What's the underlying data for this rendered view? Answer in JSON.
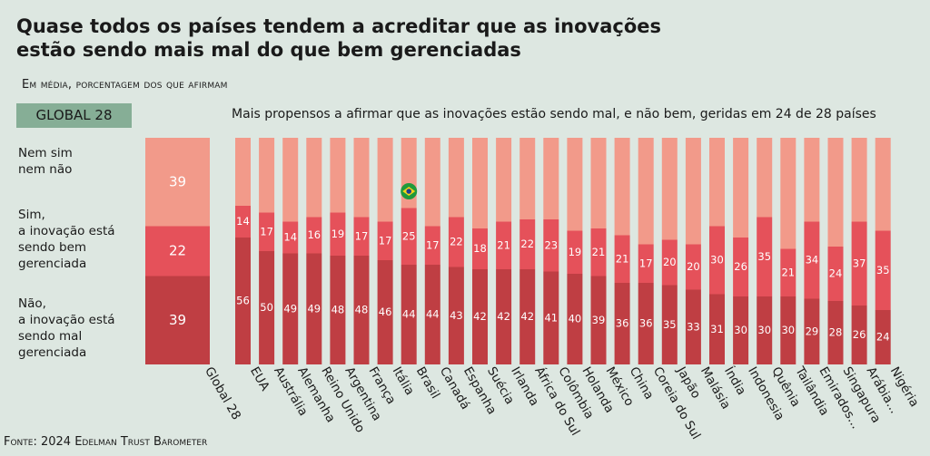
{
  "title": "Quase todos os países tendem a acreditar que as inovações estão sendo mais mal do que bem gerenciadas",
  "subtitle": "Em média, porcentagem dos que afirmam",
  "global_badge": "GLOBAL 28",
  "note": "Mais propensos a afirmar que as inovações estão sendo mal, e não bem, geridas em 24 de 28 países",
  "segment_labels": {
    "neither": "Nem sim\nnem não",
    "well": "Sim,\na inovação está\nsendo bem\ngerenciada",
    "badly": "Não,\na inovação está\nsendo mal\ngerenciada"
  },
  "source": "Fonte: 2024 Edelman Trust Barometer",
  "colors": {
    "background": "#dde7e1",
    "neither": "#f29a8a",
    "well": "#e5515a",
    "badly": "#bf3e43",
    "badge": "#86ae96"
  },
  "highlight_flag": "brazil-flag-icon",
  "chart_data": {
    "type": "bar",
    "stacked": true,
    "categories": [
      "Global 28",
      "EUA",
      "Austrália",
      "Alemanha",
      "Reino Unido",
      "Argentina",
      "França",
      "Itália",
      "Brasil",
      "Canadá",
      "Espanha",
      "Suécia",
      "Irlanda",
      "África do Sul",
      "Colômbia",
      "Holanda",
      "México",
      "China",
      "Coreia do Sul",
      "Japão",
      "Malásia",
      "Índia",
      "Indonesia",
      "Quênia",
      "Tailândia",
      "Emirados...",
      "Singapura",
      "Arábia...",
      "Nigéria"
    ],
    "series": [
      {
        "name": "Não, a inovação está sendo mal gerenciada",
        "values": [
          39,
          56,
          50,
          49,
          49,
          48,
          48,
          46,
          44,
          44,
          43,
          42,
          42,
          42,
          41,
          40,
          39,
          36,
          36,
          35,
          33,
          31,
          30,
          30,
          30,
          29,
          28,
          26,
          24
        ]
      },
      {
        "name": "Sim, a inovação está sendo bem gerenciada",
        "values": [
          22,
          14,
          17,
          14,
          16,
          19,
          17,
          17,
          25,
          17,
          22,
          18,
          21,
          22,
          23,
          19,
          21,
          21,
          17,
          20,
          20,
          30,
          26,
          35,
          21,
          34,
          24,
          37,
          35
        ]
      },
      {
        "name": "Nem sim nem não",
        "values": [
          39,
          null,
          null,
          null,
          null,
          null,
          null,
          null,
          null,
          null,
          null,
          null,
          null,
          null,
          null,
          null,
          null,
          null,
          null,
          null,
          null,
          null,
          null,
          null,
          null,
          null,
          null,
          null,
          null
        ]
      }
    ],
    "ylim": [
      0,
      100
    ]
  }
}
